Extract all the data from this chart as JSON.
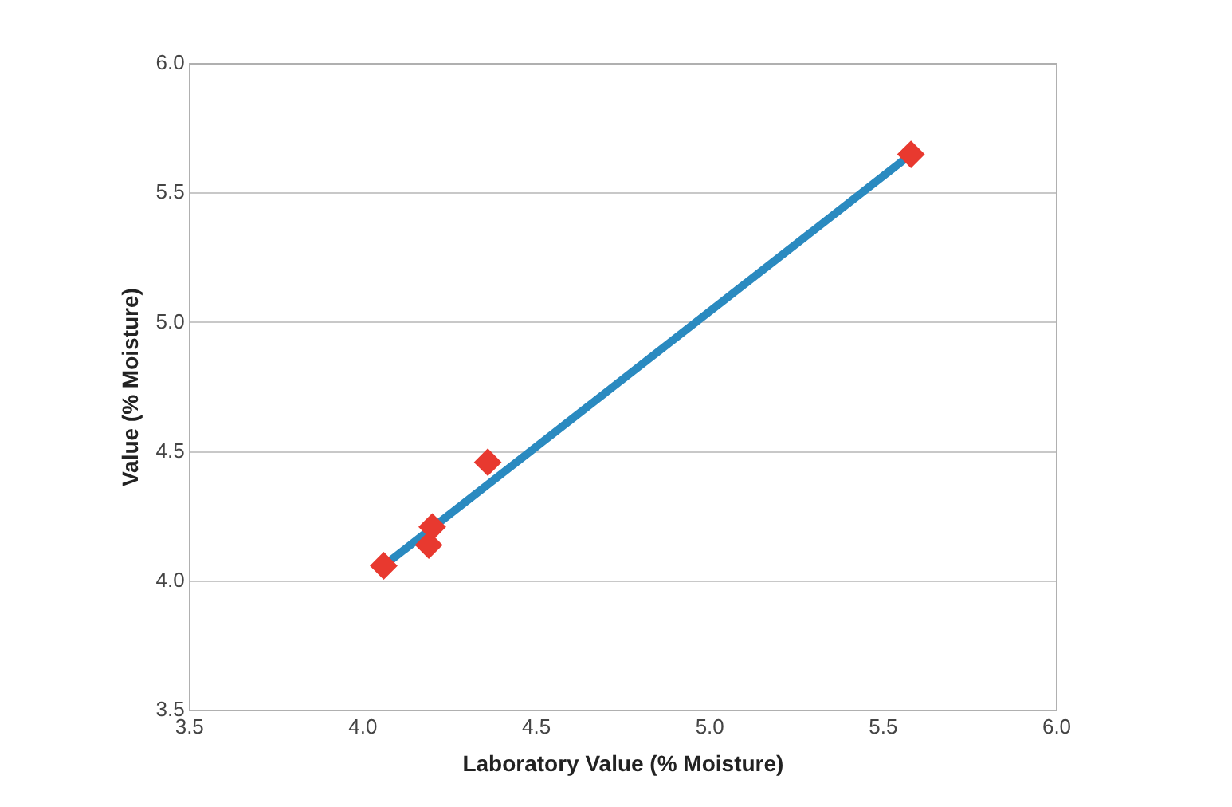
{
  "chart_data": {
    "type": "scatter",
    "xlabel": "Laboratory Value (% Moisture)",
    "ylabel": "Value (% Moisture)",
    "series": [
      {
        "color": "#e8392f",
        "marker": "diamond",
        "x": [
          4.06,
          4.19,
          4.2,
          4.36,
          5.58
        ],
        "values": [
          4.06,
          4.14,
          4.21,
          4.46,
          5.65
        ]
      },
      {
        "type": "line",
        "color": "#2a8ac0",
        "marker": "none",
        "x": [
          4.06,
          5.58
        ],
        "values": [
          4.06,
          5.65
        ]
      }
    ],
    "xlim": [
      3.5,
      6.0
    ],
    "xticks": [
      3.5,
      {
        "value": 4,
        "label": "4.0"
      },
      4.5,
      {
        "value": 5,
        "label": "5.0"
      },
      5.5,
      {
        "value": 6,
        "label": "6.0"
      }
    ],
    "ylim": [
      3.5,
      6.0
    ],
    "yticks": [
      3.5,
      {
        "value": 4,
        "label": "4.0"
      },
      4.5,
      {
        "value": 5,
        "label": "5.0"
      },
      5.5,
      {
        "value": 6,
        "label": "6.0"
      }
    ],
    "grid": "y",
    "legend": false
  }
}
